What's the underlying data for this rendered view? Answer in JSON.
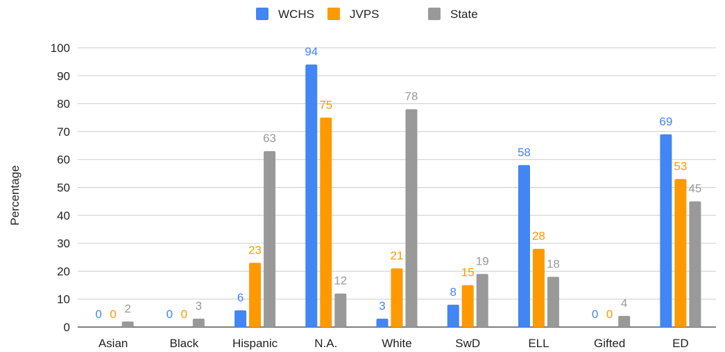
{
  "chart_data": {
    "type": "bar",
    "title": "",
    "xlabel": "",
    "ylabel": "Percentage",
    "ylim": [
      0,
      100
    ],
    "yticks": [
      0,
      10,
      20,
      30,
      40,
      50,
      60,
      70,
      80,
      90,
      100
    ],
    "grid": true,
    "legend_position": "top-center",
    "categories": [
      "Asian",
      "Black",
      "Hispanic",
      "N.A.",
      "White",
      "SwD",
      "ELL",
      "Gifted",
      "ED"
    ],
    "series": [
      {
        "name": "WCHS",
        "color": "#4285f4",
        "values": [
          0,
          0,
          6,
          94,
          3,
          8,
          58,
          0,
          69
        ]
      },
      {
        "name": "JVPS",
        "color": "#ff9900",
        "values": [
          0,
          0,
          23,
          75,
          21,
          15,
          28,
          0,
          53
        ]
      },
      {
        "name": "State",
        "color": "#999999",
        "values": [
          2,
          3,
          63,
          12,
          78,
          19,
          18,
          4,
          45
        ]
      }
    ]
  }
}
